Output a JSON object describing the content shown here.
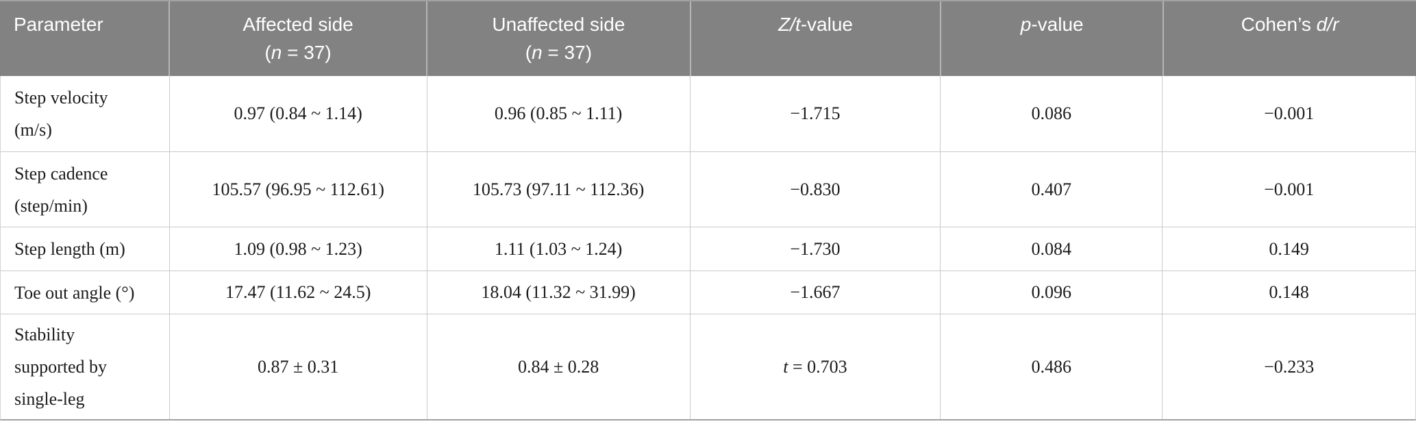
{
  "colors": {
    "header_bg": "#828282",
    "header_text": "#ffffff",
    "header_divider": "#b5b5b5",
    "body_text": "#1b1b1b",
    "grid_line": "#c9c9c9",
    "bottom_border": "#a0a0a0"
  },
  "header": {
    "parameter": "Parameter",
    "affected": {
      "line1": "Affected side",
      "open": "(",
      "n_italic": "n",
      "rest": " = 37)"
    },
    "unaffected": {
      "line1": "Unaffected side",
      "open": "(",
      "n_italic": "n",
      "rest": " = 37)"
    },
    "zt": {
      "italic": "Z/t",
      "rest": "-value"
    },
    "p": {
      "italic": "p",
      "rest": "-value"
    },
    "cohens": {
      "pre": "Cohen’s ",
      "italic": "d/r"
    }
  },
  "rows": [
    {
      "parameter_lines": [
        "Step velocity",
        "(m/s)"
      ],
      "affected": "0.97 (0.84 ~ 1.14)",
      "unaffected": "0.96 (0.85 ~ 1.11)",
      "zt": "−1.715",
      "p": "0.086",
      "cohens": "−0.001"
    },
    {
      "parameter_lines": [
        "Step cadence",
        "(step/min)"
      ],
      "affected": "105.57 (96.95 ~ 112.61)",
      "unaffected": "105.73 (97.11 ~ 112.36)",
      "zt": "−0.830",
      "p": "0.407",
      "cohens": "−0.001"
    },
    {
      "parameter_lines": [
        "Step length (m)"
      ],
      "affected": "1.09 (0.98 ~ 1.23)",
      "unaffected": "1.11 (1.03 ~ 1.24)",
      "zt": "−1.730",
      "p": "0.084",
      "cohens": "0.149"
    },
    {
      "parameter_lines": [
        "Toe out angle (°)"
      ],
      "affected": "17.47 (11.62 ~ 24.5)",
      "unaffected": "18.04 (11.32 ~ 31.99)",
      "zt": "−1.667",
      "p": "0.096",
      "cohens": "0.148"
    },
    {
      "parameter_lines": [
        "Stability",
        "supported by",
        "single-leg"
      ],
      "affected": "0.87 ± 0.31",
      "unaffected": "0.84 ± 0.28",
      "zt_italic": "t",
      "zt_rest": " = 0.703",
      "p": "0.486",
      "cohens": "−0.233"
    }
  ],
  "chart_data": {
    "type": "table",
    "columns": [
      "Parameter",
      "Affected side (n = 37)",
      "Unaffected side (n = 37)",
      "Z/t-value",
      "p-value",
      "Cohen's d/r"
    ],
    "rows": [
      [
        "Step velocity (m/s)",
        "0.97 (0.84 ~ 1.14)",
        "0.96 (0.85 ~ 1.11)",
        "−1.715",
        "0.086",
        "−0.001"
      ],
      [
        "Step cadence (step/min)",
        "105.57 (96.95 ~ 112.61)",
        "105.73 (97.11 ~ 112.36)",
        "−0.830",
        "0.407",
        "−0.001"
      ],
      [
        "Step length (m)",
        "1.09 (0.98 ~ 1.23)",
        "1.11 (1.03 ~ 1.24)",
        "−1.730",
        "0.084",
        "0.149"
      ],
      [
        "Toe out angle (°)",
        "17.47 (11.62 ~ 24.5)",
        "18.04 (11.32 ~ 31.99)",
        "−1.667",
        "0.096",
        "0.148"
      ],
      [
        "Stability supported by single-leg",
        "0.87 ± 0.31",
        "0.84 ± 0.28",
        "t = 0.703",
        "0.486",
        "−0.233"
      ]
    ]
  }
}
